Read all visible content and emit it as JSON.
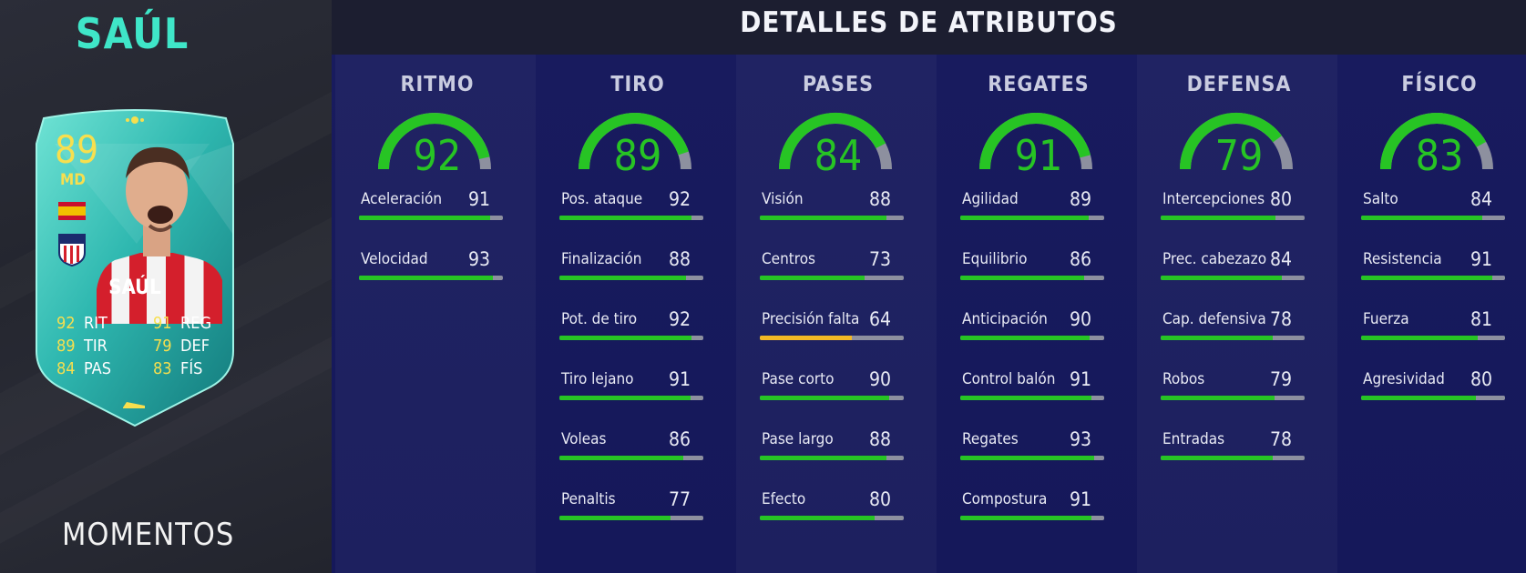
{
  "player": {
    "name": "SAÚL",
    "rating": "89",
    "position": "MD",
    "card_stats": [
      {
        "value": "92",
        "label": "RIT"
      },
      {
        "value": "89",
        "label": "TIR"
      },
      {
        "value": "84",
        "label": "PAS"
      },
      {
        "value": "91",
        "label": "REG"
      },
      {
        "value": "79",
        "label": "DEF"
      },
      {
        "value": "83",
        "label": "FÍS"
      }
    ],
    "card_type": "MOMENTOS"
  },
  "header": {
    "title": "DETALLES DE ATRIBUTOS"
  },
  "categories": [
    {
      "label": "RITMO",
      "value": "92",
      "stats": [
        {
          "label": "Aceleración",
          "value": "91"
        },
        {
          "label": "Velocidad",
          "value": "93"
        }
      ]
    },
    {
      "label": "TIRO",
      "value": "89",
      "stats": [
        {
          "label": "Pos. ataque",
          "value": "92"
        },
        {
          "label": "Finalización",
          "value": "88"
        },
        {
          "label": "Pot. de tiro",
          "value": "92"
        },
        {
          "label": "Tiro lejano",
          "value": "91"
        },
        {
          "label": "Voleas",
          "value": "86"
        },
        {
          "label": "Penaltis",
          "value": "77"
        }
      ]
    },
    {
      "label": "PASES",
      "value": "84",
      "stats": [
        {
          "label": "Visión",
          "value": "88"
        },
        {
          "label": "Centros",
          "value": "73"
        },
        {
          "label": "Precisión falta",
          "value": "64"
        },
        {
          "label": "Pase corto",
          "value": "90"
        },
        {
          "label": "Pase largo",
          "value": "88"
        },
        {
          "label": "Efecto",
          "value": "80"
        }
      ]
    },
    {
      "label": "REGATES",
      "value": "91",
      "stats": [
        {
          "label": "Agilidad",
          "value": "89"
        },
        {
          "label": "Equilibrio",
          "value": "86"
        },
        {
          "label": "Anticipación",
          "value": "90"
        },
        {
          "label": "Control balón",
          "value": "91"
        },
        {
          "label": "Regates",
          "value": "93"
        },
        {
          "label": "Compostura",
          "value": "91"
        }
      ]
    },
    {
      "label": "DEFENSA",
      "value": "79",
      "stats": [
        {
          "label": "Intercepciones",
          "value": "80"
        },
        {
          "label": "Prec. cabezazo",
          "value": "84"
        },
        {
          "label": "Cap. defensiva",
          "value": "78"
        },
        {
          "label": "Robos",
          "value": "79"
        },
        {
          "label": "Entradas",
          "value": "78"
        }
      ]
    },
    {
      "label": "FÍSICO",
      "value": "83",
      "stats": [
        {
          "label": "Salto",
          "value": "84"
        },
        {
          "label": "Resistencia",
          "value": "91"
        },
        {
          "label": "Fuerza",
          "value": "81"
        },
        {
          "label": "Agresividad",
          "value": "80"
        }
      ]
    }
  ],
  "colors": {
    "high": "#27c424",
    "mid": "#f2b824",
    "track": "#8d909f",
    "name_accent": "#3fe6c8",
    "card_gold": "#f7df4e"
  }
}
